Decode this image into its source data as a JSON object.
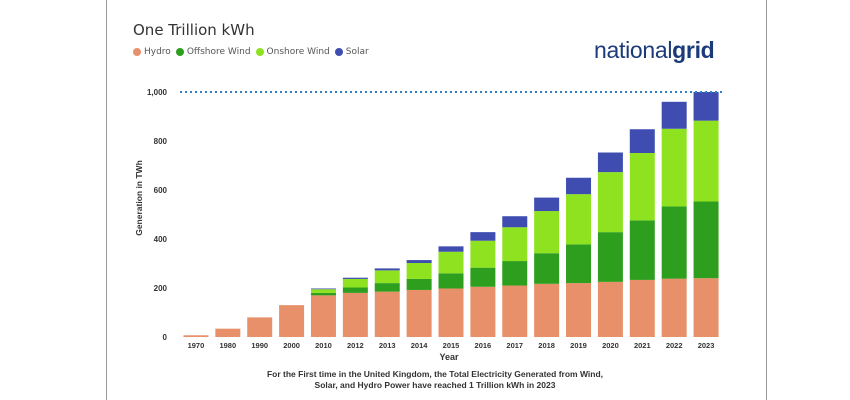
{
  "chart_data": {
    "type": "bar",
    "stacked": true,
    "title": "One Trillion kWh",
    "xlabel": "Year",
    "ylabel": "Generation in TWh",
    "ylim": [
      0,
      1000
    ],
    "yticks": [
      0,
      200,
      400,
      600,
      800,
      1000
    ],
    "ytick_labels": [
      "0",
      "200",
      "400",
      "600",
      "800",
      "1,000"
    ],
    "grid": false,
    "legend_position": "top-left",
    "categories": [
      "1970",
      "1980",
      "1990",
      "2000",
      "2010",
      "2012",
      "2013",
      "2014",
      "2015",
      "2016",
      "2017",
      "2018",
      "2019",
      "2020",
      "2021",
      "2022",
      "2023"
    ],
    "series": [
      {
        "name": "Hydro",
        "color": "#E8906A",
        "values": [
          7,
          34,
          80,
          130,
          170,
          180,
          185,
          192,
          198,
          205,
          210,
          217,
          220,
          225,
          233,
          238,
          240
        ]
      },
      {
        "name": "Offshore Wind",
        "color": "#2E9E1F",
        "values": [
          0,
          0,
          0,
          0,
          10,
          22,
          35,
          45,
          62,
          78,
          100,
          125,
          158,
          203,
          243,
          295,
          313
        ]
      },
      {
        "name": "Onshore Wind",
        "color": "#8EE21F",
        "values": [
          0,
          0,
          0,
          0,
          15,
          35,
          52,
          65,
          88,
          110,
          138,
          172,
          205,
          245,
          275,
          317,
          330
        ]
      },
      {
        "name": "Solar",
        "color": "#3F4DB0",
        "values": [
          0,
          0,
          0,
          0,
          3,
          5,
          8,
          12,
          22,
          35,
          45,
          55,
          67,
          80,
          97,
          110,
          117
        ]
      }
    ],
    "reference_line": {
      "value": 1000,
      "style": "dotted",
      "color": "#2E7FC9"
    }
  },
  "brand": {
    "part1": "national",
    "part2": "grid"
  },
  "caption": {
    "line1": "For the First time in the United Kingdom, the Total Electricity Generated from Wind,",
    "line2": "Solar, and Hydro Power have reached 1 Trillion kWh in 2023"
  }
}
